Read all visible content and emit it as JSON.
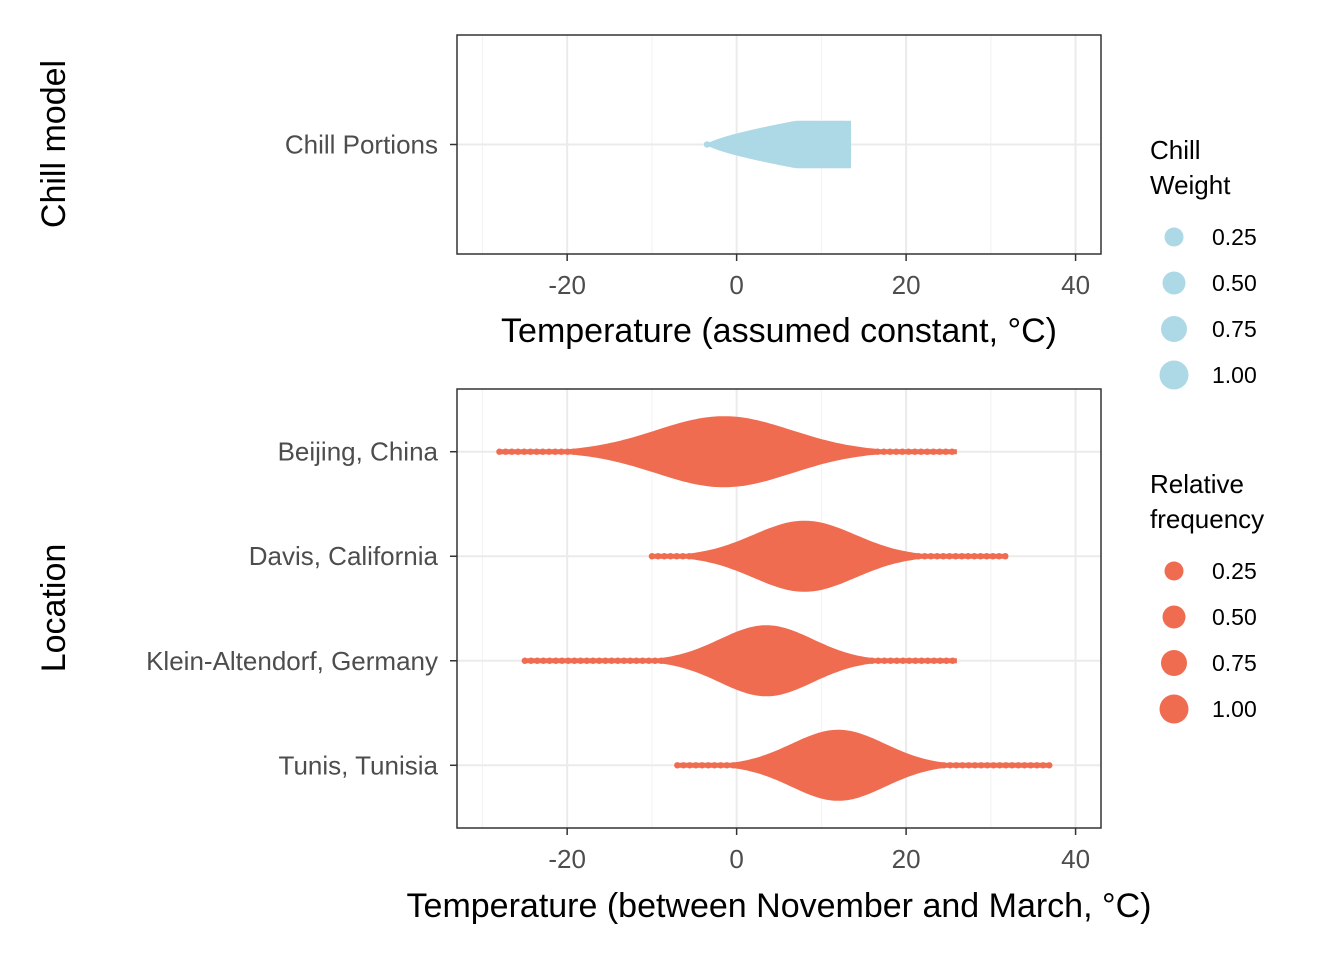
{
  "chart_data": [
    {
      "type": "beeswarm",
      "xlabel": "Temperature (assumed constant, °C)",
      "ylabel": "Chill model",
      "xlim": [
        -33,
        43
      ],
      "xticks": [
        -20,
        0,
        20,
        40
      ],
      "grid": true,
      "color": "#ADD8E6",
      "legend": {
        "title": [
          "Chill",
          "Weight"
        ],
        "entries": [
          "0.25",
          "0.50",
          "0.75",
          "1.00"
        ],
        "placement": "right"
      },
      "categories": [
        "Chill Portions"
      ],
      "series": [
        {
          "name": "Chill Portions",
          "min": -3.5,
          "max": 13.5,
          "peak": 7,
          "profile": "chill",
          "half_height": 0.13
        }
      ]
    },
    {
      "type": "beeswarm",
      "xlabel": "Temperature (between November and March, °C)",
      "ylabel": "Location",
      "xlim": [
        -33,
        43
      ],
      "xticks": [
        -20,
        0,
        20,
        40
      ],
      "grid": true,
      "color": "#F06C50",
      "legend": {
        "title": [
          "Relative",
          "frequency"
        ],
        "entries": [
          "0.25",
          "0.50",
          "0.75",
          "1.00"
        ],
        "placement": "right"
      },
      "categories": [
        "Tunis, Tunisia",
        "Klein-Altendorf, Germany",
        "Davis, California",
        "Beijing, China"
      ],
      "series": [
        {
          "name": "Tunis, Tunisia",
          "min": -7,
          "max": 37,
          "peak": 12,
          "sigma": 5.5,
          "half_height": 0.34
        },
        {
          "name": "Klein-Altendorf, Germany",
          "min": -25,
          "max": 26,
          "peak": 3.5,
          "sigma": 5.5,
          "half_height": 0.34
        },
        {
          "name": "Davis, California",
          "min": -10,
          "max": 32,
          "peak": 8,
          "sigma": 6,
          "half_height": 0.34
        },
        {
          "name": "Beijing, China",
          "min": -28,
          "max": 26,
          "peak": -1.5,
          "sigma": 8,
          "half_height": 0.34
        }
      ]
    }
  ]
}
